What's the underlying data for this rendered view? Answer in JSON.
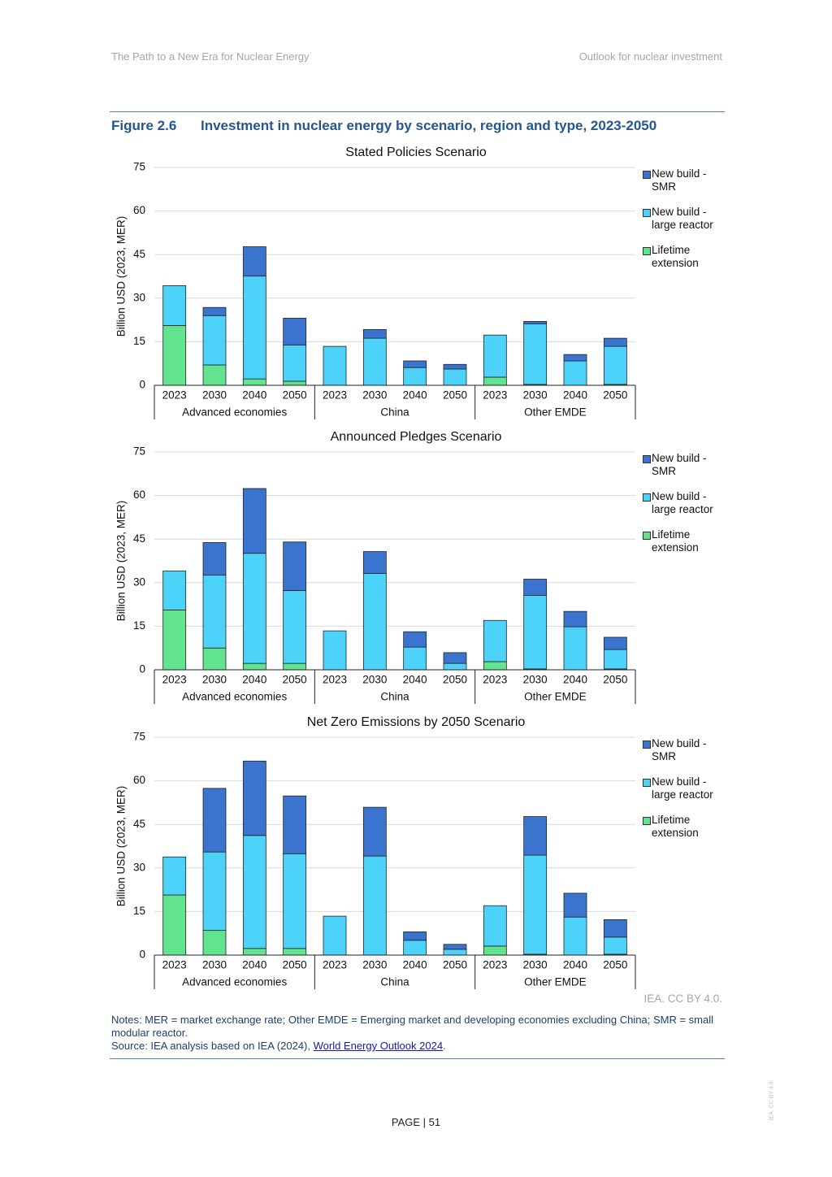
{
  "header": {
    "left": "The Path to a New Era for Nuclear Energy",
    "right": "Outlook for nuclear investment"
  },
  "figure": {
    "label": "Figure 2.6",
    "title": "Investment in nuclear energy by scenario, region and type, 2023-2050"
  },
  "chart_data": [
    {
      "type": "bar",
      "stacked": true,
      "title": "Stated Policies Scenario",
      "y_label": "Billion USD (2023, MER)",
      "groups": [
        "Advanced economies",
        "China",
        "Other EMDE"
      ],
      "categories": [
        "2023",
        "2030",
        "2040",
        "2050",
        "2023",
        "2030",
        "2040",
        "2050",
        "2023",
        "2030",
        "2040",
        "2050"
      ],
      "series": [
        {
          "name": "Lifetime extension",
          "color": "#62e48e",
          "values": [
            20.6,
            7.0,
            2.2,
            1.4,
            0,
            0,
            0,
            0,
            2.8,
            0.3,
            0,
            0.3
          ]
        },
        {
          "name": "New build - large reactor",
          "color": "#4dd2f9",
          "values": [
            13.7,
            17.0,
            35.4,
            12.5,
            13.4,
            16.2,
            6.1,
            5.6,
            14.5,
            20.9,
            8.4,
            13.1
          ]
        },
        {
          "name": "New build - SMR",
          "color": "#3a74cf",
          "values": [
            0,
            2.8,
            10.1,
            9.2,
            0,
            3.0,
            2.3,
            1.6,
            0,
            0.8,
            2.2,
            2.8
          ]
        }
      ],
      "ylim": [
        0,
        75
      ],
      "yticks": [
        0,
        15,
        30,
        45,
        60,
        75
      ],
      "grid": true,
      "legend": "right"
    },
    {
      "type": "bar",
      "stacked": true,
      "title": "Announced Pledges Scenario",
      "y_label": "Billion USD (2023, MER)",
      "groups": [
        "Advanced economies",
        "China",
        "Other EMDE"
      ],
      "categories": [
        "2023",
        "2030",
        "2040",
        "2050",
        "2023",
        "2030",
        "2040",
        "2050",
        "2023",
        "2030",
        "2040",
        "2050"
      ],
      "series": [
        {
          "name": "Lifetime extension",
          "color": "#62e48e",
          "values": [
            20.6,
            7.5,
            2.2,
            2.2,
            0,
            0,
            0,
            0,
            2.8,
            0.3,
            0,
            0.3
          ]
        },
        {
          "name": "New build - large reactor",
          "color": "#4dd2f9",
          "values": [
            13.4,
            25.1,
            37.9,
            25.1,
            13.4,
            33.2,
            7.8,
            2.2,
            14.2,
            25.3,
            14.8,
            6.7
          ]
        },
        {
          "name": "New build - SMR",
          "color": "#3a74cf",
          "values": [
            0,
            11.2,
            22.3,
            16.7,
            0,
            7.5,
            5.3,
            3.7,
            0,
            5.6,
            5.3,
            4.2
          ]
        }
      ],
      "ylim": [
        0,
        75
      ],
      "yticks": [
        0,
        15,
        30,
        45,
        60,
        75
      ],
      "grid": true,
      "legend": "right"
    },
    {
      "type": "bar",
      "stacked": true,
      "title": "Net Zero Emissions by 2050 Scenario",
      "y_label": "Billion USD (2023, MER)",
      "groups": [
        "Advanced economies",
        "China",
        "Other EMDE"
      ],
      "categories": [
        "2023",
        "2030",
        "2040",
        "2050",
        "2023",
        "2030",
        "2040",
        "2050",
        "2023",
        "2030",
        "2040",
        "2050"
      ],
      "series": [
        {
          "name": "Lifetime extension",
          "color": "#62e48e",
          "values": [
            20.7,
            8.5,
            2.3,
            2.3,
            0,
            0,
            0,
            0,
            3.1,
            0.3,
            0,
            0.3
          ]
        },
        {
          "name": "New build - large reactor",
          "color": "#4dd2f9",
          "values": [
            13.1,
            27.0,
            38.9,
            32.6,
            13.4,
            34.1,
            5.1,
            2.0,
            13.9,
            34.1,
            13.1,
            5.9
          ]
        },
        {
          "name": "New build - SMR",
          "color": "#3a74cf",
          "values": [
            0,
            21.9,
            25.6,
            19.9,
            0,
            16.8,
            2.9,
            1.7,
            0,
            13.3,
            8.2,
            6.0
          ]
        }
      ],
      "ylim": [
        0,
        75
      ],
      "yticks": [
        0,
        15,
        30,
        45,
        60,
        75
      ],
      "grid": true,
      "legend": "right"
    }
  ],
  "credit": "IEA. CC BY 4.0.",
  "notes": "Notes: MER = market exchange rate; Other EMDE = Emerging market and developing economies excluding China; SMR = small modular reactor.",
  "source": {
    "text": "Source: IEA analysis based on IEA (2024), ",
    "link": "World Energy Outlook 2024",
    "end": "."
  },
  "footer": {
    "page": "PAGE | 51",
    "side": "IEA. CC BY 4.0."
  }
}
